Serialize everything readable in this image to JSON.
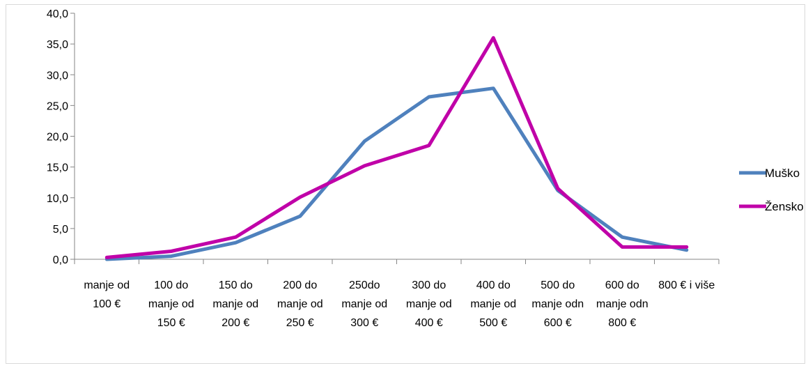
{
  "chart_data": {
    "type": "line",
    "categories": [
      [
        "manje od",
        "100 €"
      ],
      [
        "100 do",
        "manje od",
        "150 €"
      ],
      [
        "150 do",
        "manje od",
        "200 €"
      ],
      [
        "200 do",
        "manje od",
        "250 €"
      ],
      [
        "250do",
        "manje od",
        "300 €"
      ],
      [
        "300 do",
        "manje od",
        "400 €"
      ],
      [
        "400 do",
        "manje od",
        "500 €"
      ],
      [
        "500 do",
        "manje odn",
        "600 €"
      ],
      [
        "600 do",
        "manje odn",
        "800 €"
      ],
      [
        "800 € i više"
      ]
    ],
    "series": [
      {
        "name": "Muško",
        "color": "#4f81bd",
        "values": [
          0.0,
          0.5,
          2.7,
          7.0,
          19.2,
          26.4,
          27.8,
          11.2,
          3.6,
          1.5
        ]
      },
      {
        "name": "Žensko",
        "color": "#c000a8",
        "values": [
          0.3,
          1.3,
          3.6,
          10.1,
          15.2,
          18.5,
          36.0,
          11.5,
          2.0,
          2.0
        ]
      }
    ],
    "ylim": [
      0,
      40
    ],
    "yticks": [
      "0,0",
      "5,0",
      "10,0",
      "15,0",
      "20,0",
      "25,0",
      "30,0",
      "35,0",
      "40,0"
    ],
    "grid": false,
    "legend": "right"
  }
}
